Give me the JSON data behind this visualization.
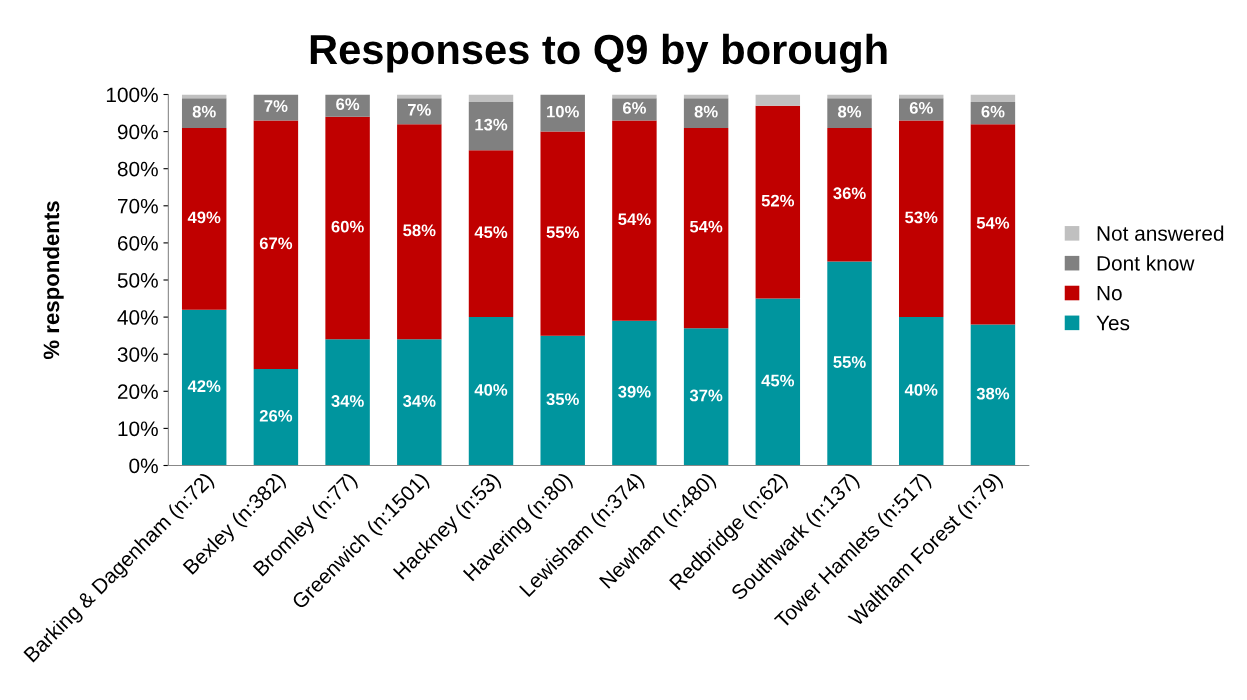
{
  "chart_data": {
    "type": "bar",
    "stacked": true,
    "title": "Responses to Q9 by borough",
    "ylabel": "% respondents",
    "categories": [
      "Barking & Dagenham (n:72)",
      "Bexley (n:382)",
      "Bromley (n:77)",
      "Greenwich (n:1501)",
      "Hackney (n:53)",
      "Havering (n:80)",
      "Lewisham (n:374)",
      "Newham (n:480)",
      "Redbridge (n:62)",
      "Southwark (n:137)",
      "Tower Hamlets (n:517)",
      "Waltham Forest (n:79)"
    ],
    "series": [
      {
        "name": "Yes",
        "color": "#00959e",
        "values": [
          42,
          26,
          34,
          34,
          40,
          35,
          39,
          37,
          45,
          55,
          40,
          38
        ],
        "value_labels": [
          "42%",
          "26%",
          "34%",
          "34%",
          "40%",
          "35%",
          "39%",
          "37%",
          "45%",
          "55%",
          "40%",
          "38%"
        ]
      },
      {
        "name": "No",
        "color": "#c00000",
        "values": [
          49,
          67,
          60,
          58,
          45,
          55,
          54,
          54,
          52,
          36,
          53,
          54
        ],
        "value_labels": [
          "49%",
          "67%",
          "60%",
          "58%",
          "45%",
          "55%",
          "54%",
          "54%",
          "52%",
          "36%",
          "53%",
          "54%"
        ]
      },
      {
        "name": "Dont know",
        "color": "#808080",
        "values": [
          8,
          7,
          6,
          7,
          13,
          10,
          6,
          8,
          0,
          8,
          6,
          6
        ],
        "value_labels": [
          "8%",
          "7%",
          "6%",
          "7%",
          "13%",
          "10%",
          "6%",
          "8%",
          null,
          "8%",
          "6%",
          "6%"
        ]
      },
      {
        "name": "Not answered",
        "color": "#c0c0c0",
        "values": [
          1,
          0,
          0,
          1,
          2,
          0,
          1,
          1,
          3,
          1,
          1,
          2
        ]
      }
    ],
    "ylim": [
      0,
      100
    ],
    "yticks": [
      {
        "value": 0,
        "label": "0%"
      },
      {
        "value": 10,
        "label": "10%"
      },
      {
        "value": 20,
        "label": "20%"
      },
      {
        "value": 30,
        "label": "30%"
      },
      {
        "value": 40,
        "label": "40%"
      },
      {
        "value": 50,
        "label": "50%"
      },
      {
        "value": 60,
        "label": "60%"
      },
      {
        "value": 70,
        "label": "70%"
      },
      {
        "value": 80,
        "label": "80%"
      },
      {
        "value": 90,
        "label": "90%"
      },
      {
        "value": 100,
        "label": "100%"
      }
    ],
    "legend": "right",
    "grid": false
  }
}
